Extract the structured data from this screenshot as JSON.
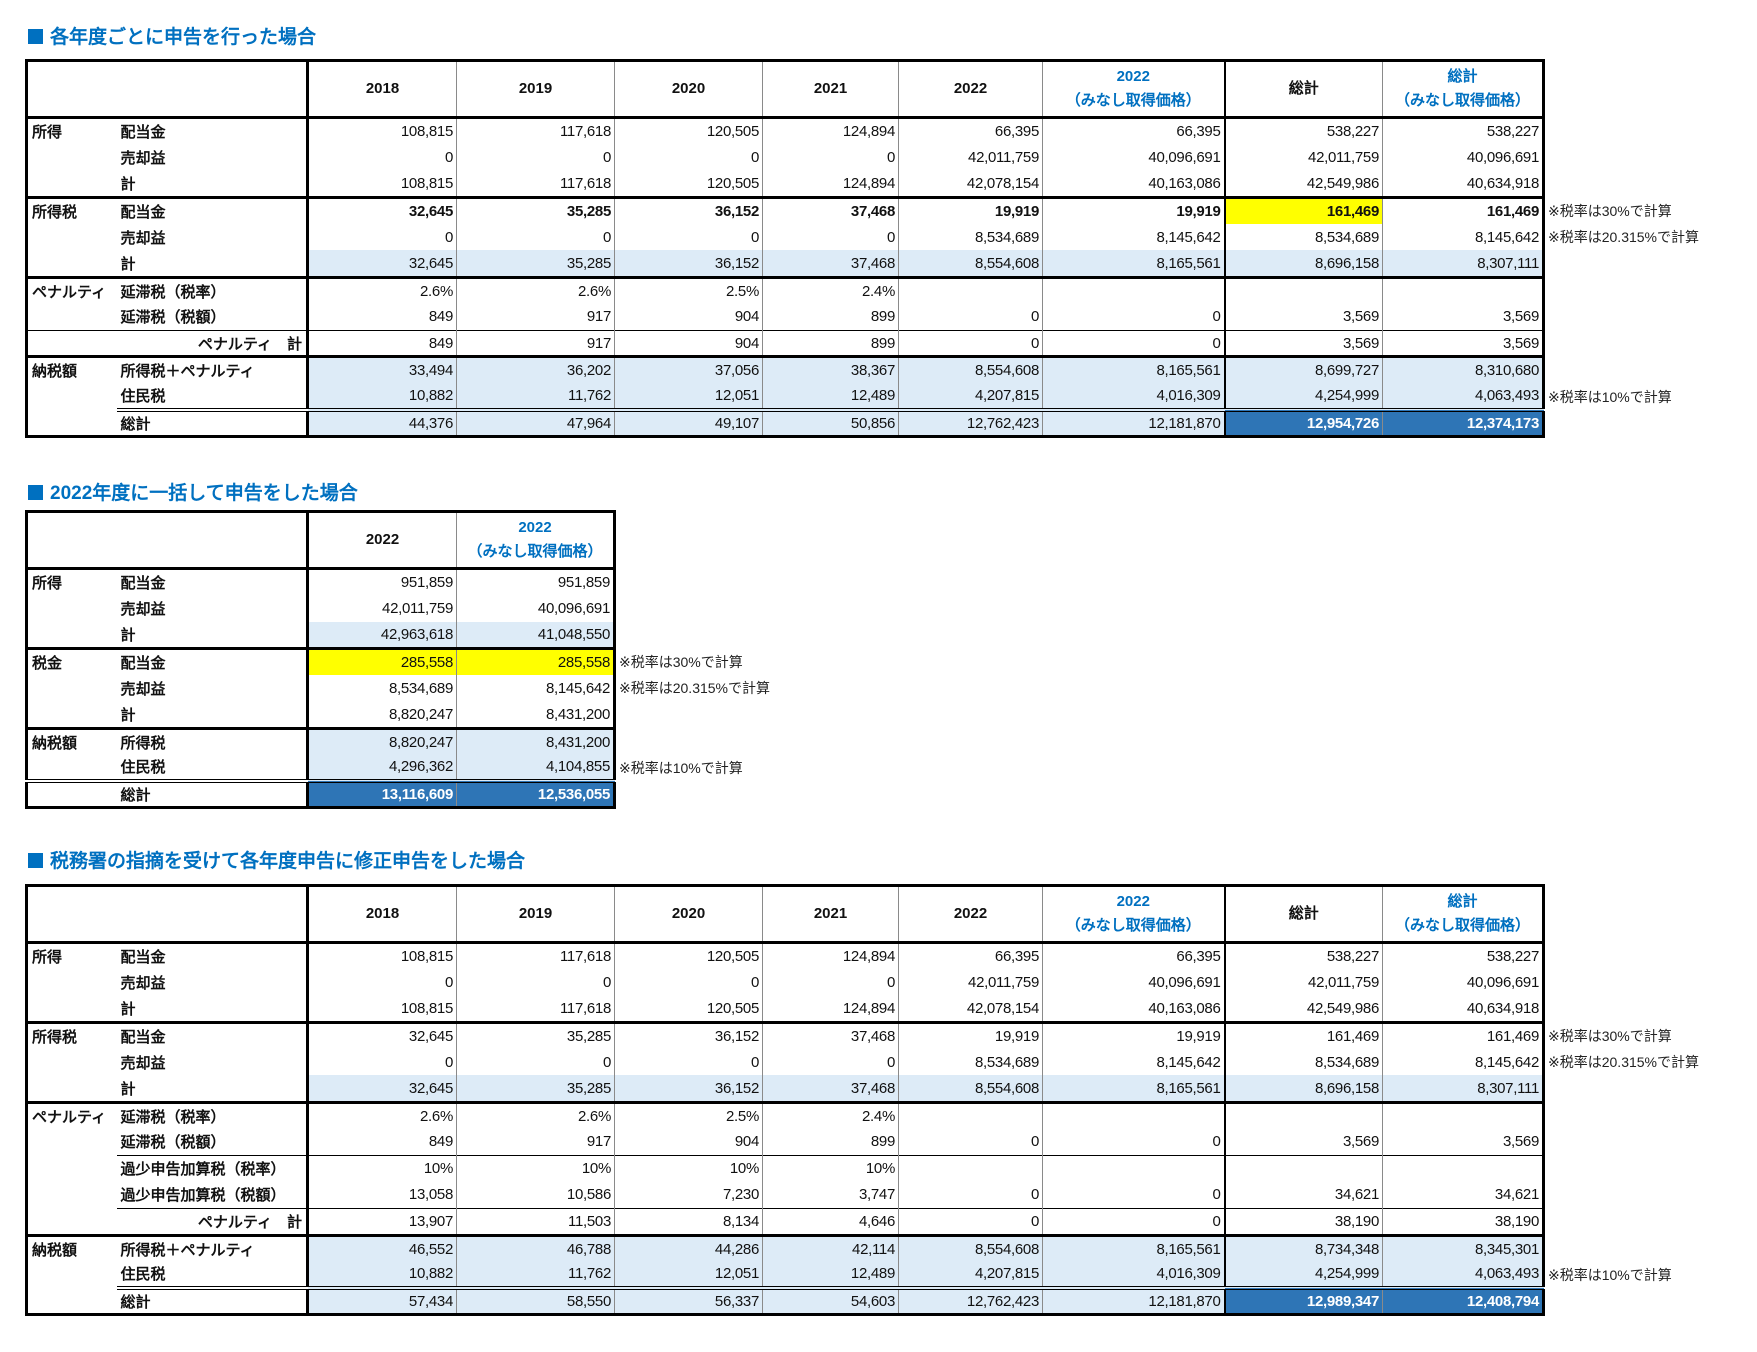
{
  "colors": {
    "light-blue": "#ddebf7",
    "yellow": "#ffff00",
    "dark-blue": "#2e75b6",
    "title": "#0070c0"
  },
  "tables": [
    {
      "title": "各年度ごとに申告を行った場合",
      "columns": [
        {
          "label": "2018"
        },
        {
          "label": "2019"
        },
        {
          "label": "2020"
        },
        {
          "label": "2021"
        },
        {
          "label": "2022"
        },
        {
          "label": "2022",
          "sub": "（みなし取得価格）",
          "blue": true
        },
        {
          "label": "総計"
        },
        {
          "label": "総計",
          "sub": "（みなし取得価格）",
          "blue": true
        }
      ],
      "rows": [
        {
          "group": "所得",
          "item": "配当金",
          "values": [
            "108,815",
            "117,618",
            "120,505",
            "124,894",
            "66,395",
            "66,395",
            "538,227",
            "538,227"
          ]
        },
        {
          "item": "売却益",
          "values": [
            "0",
            "0",
            "0",
            "0",
            "42,011,759",
            "40,096,691",
            "42,011,759",
            "40,096,691"
          ]
        },
        {
          "item": "計",
          "values": [
            "108,815",
            "117,618",
            "120,505",
            "124,894",
            "42,078,154",
            "40,163,086",
            "42,549,986",
            "40,634,918"
          ]
        },
        {
          "group": "所得税",
          "item": "配当金",
          "bold": true,
          "values": [
            "32,645",
            "35,285",
            "36,152",
            "37,468",
            "19,919",
            "19,919",
            "161,469",
            "161,469"
          ],
          "highlights": [
            {
              "col": 6,
              "color": "yellow"
            }
          ],
          "note": "※税率は30%で計算"
        },
        {
          "item": "売却益",
          "values": [
            "0",
            "0",
            "0",
            "0",
            "8,534,689",
            "8,145,642",
            "8,534,689",
            "8,145,642"
          ],
          "note": "※税率は20.315%で計算"
        },
        {
          "item": "計",
          "fill": "light-blue",
          "values": [
            "32,645",
            "35,285",
            "36,152",
            "37,468",
            "8,554,608",
            "8,165,561",
            "8,696,158",
            "8,307,111"
          ]
        },
        {
          "group": "ペナルティ",
          "item": "延滞税（税率）",
          "values": [
            "2.6%",
            "2.6%",
            "2.5%",
            "2.4%",
            "",
            "",
            "",
            ""
          ]
        },
        {
          "item": "延滞税（税額）",
          "values": [
            "849",
            "917",
            "904",
            "899",
            "0",
            "0",
            "3,569",
            "3,569"
          ]
        },
        {
          "item": "ペナルティ　計",
          "type": "subtotal",
          "values": [
            "849",
            "917",
            "904",
            "899",
            "0",
            "0",
            "3,569",
            "3,569"
          ]
        },
        {
          "group": "納税額",
          "item": "所得税＋ペナルティ",
          "fill": "light-blue",
          "values": [
            "33,494",
            "36,202",
            "37,056",
            "38,367",
            "8,554,608",
            "8,165,561",
            "8,699,727",
            "8,310,680"
          ]
        },
        {
          "item": "住民税",
          "fill": "light-blue",
          "values": [
            "10,882",
            "11,762",
            "12,051",
            "12,489",
            "4,207,815",
            "4,016,309",
            "4,254,999",
            "4,063,493"
          ],
          "note": "※税率は10%で計算"
        },
        {
          "item": "総計",
          "type": "total",
          "fill": "light-blue",
          "values": [
            "44,376",
            "47,964",
            "49,107",
            "50,856",
            "12,762,423",
            "12,181,870",
            "12,954,726",
            "12,374,173"
          ],
          "highlights": [
            {
              "col": 6,
              "color": "dark-blue"
            },
            {
              "col": 7,
              "color": "dark-blue"
            }
          ]
        }
      ]
    },
    {
      "title": "2022年度に一括して申告をした場合",
      "columns": [
        {
          "label": "2022"
        },
        {
          "label": "2022",
          "sub": "（みなし取得価格）",
          "blue": true
        }
      ],
      "rows": [
        {
          "group": "所得",
          "item": "配当金",
          "values": [
            "951,859",
            "951,859"
          ]
        },
        {
          "item": "売却益",
          "values": [
            "42,011,759",
            "40,096,691"
          ]
        },
        {
          "item": "計",
          "fill": "light-blue",
          "values": [
            "42,963,618",
            "41,048,550"
          ]
        },
        {
          "group": "税金",
          "item": "配当金",
          "values": [
            "285,558",
            "285,558"
          ],
          "highlights": [
            {
              "col": 0,
              "color": "yellow"
            },
            {
              "col": 1,
              "color": "yellow"
            }
          ],
          "note": "※税率は30%で計算"
        },
        {
          "item": "売却益",
          "values": [
            "8,534,689",
            "8,145,642"
          ],
          "note": "※税率は20.315%で計算"
        },
        {
          "item": "計",
          "values": [
            "8,820,247",
            "8,431,200"
          ]
        },
        {
          "group": "納税額",
          "item": "所得税",
          "fill": "light-blue",
          "values": [
            "8,820,247",
            "8,431,200"
          ]
        },
        {
          "item": "住民税",
          "fill": "light-blue",
          "values": [
            "4,296,362",
            "4,104,855"
          ],
          "note": "※税率は10%で計算"
        },
        {
          "item": "総計",
          "type": "total",
          "values": [
            "13,116,609",
            "12,536,055"
          ],
          "highlights": [
            {
              "col": 0,
              "color": "dark-blue"
            },
            {
              "col": 1,
              "color": "dark-blue"
            }
          ]
        }
      ]
    },
    {
      "title": "税務署の指摘を受けて各年度申告に修正申告をした場合",
      "columns": [
        {
          "label": "2018"
        },
        {
          "label": "2019"
        },
        {
          "label": "2020"
        },
        {
          "label": "2021"
        },
        {
          "label": "2022"
        },
        {
          "label": "2022",
          "sub": "（みなし取得価格）",
          "blue": true
        },
        {
          "label": "総計"
        },
        {
          "label": "総計",
          "sub": "（みなし取得価格）",
          "blue": true
        }
      ],
      "rows": [
        {
          "group": "所得",
          "item": "配当金",
          "values": [
            "108,815",
            "117,618",
            "120,505",
            "124,894",
            "66,395",
            "66,395",
            "538,227",
            "538,227"
          ]
        },
        {
          "item": "売却益",
          "values": [
            "0",
            "0",
            "0",
            "0",
            "42,011,759",
            "40,096,691",
            "42,011,759",
            "40,096,691"
          ]
        },
        {
          "item": "計",
          "values": [
            "108,815",
            "117,618",
            "120,505",
            "124,894",
            "42,078,154",
            "40,163,086",
            "42,549,986",
            "40,634,918"
          ]
        },
        {
          "group": "所得税",
          "item": "配当金",
          "values": [
            "32,645",
            "35,285",
            "36,152",
            "37,468",
            "19,919",
            "19,919",
            "161,469",
            "161,469"
          ],
          "note": "※税率は30%で計算"
        },
        {
          "item": "売却益",
          "values": [
            "0",
            "0",
            "0",
            "0",
            "8,534,689",
            "8,145,642",
            "8,534,689",
            "8,145,642"
          ],
          "note": "※税率は20.315%で計算"
        },
        {
          "item": "計",
          "fill": "light-blue",
          "values": [
            "32,645",
            "35,285",
            "36,152",
            "37,468",
            "8,554,608",
            "8,165,561",
            "8,696,158",
            "8,307,111"
          ]
        },
        {
          "group": "ペナルティ",
          "item": "延滞税（税率）",
          "values": [
            "2.6%",
            "2.6%",
            "2.5%",
            "2.4%",
            "",
            "",
            "",
            ""
          ]
        },
        {
          "item": "延滞税（税額）",
          "values": [
            "849",
            "917",
            "904",
            "899",
            "0",
            "0",
            "3,569",
            "3,569"
          ]
        },
        {
          "item": "過少申告加算税（税率）",
          "type": "divider",
          "values": [
            "10%",
            "10%",
            "10%",
            "10%",
            "",
            "",
            "",
            ""
          ]
        },
        {
          "item": "過少申告加算税（税額）",
          "values": [
            "13,058",
            "10,586",
            "7,230",
            "3,747",
            "0",
            "0",
            "34,621",
            "34,621"
          ]
        },
        {
          "item": "ペナルティ　計",
          "type": "subtotal",
          "values": [
            "13,907",
            "11,503",
            "8,134",
            "4,646",
            "0",
            "0",
            "38,190",
            "38,190"
          ]
        },
        {
          "group": "納税額",
          "item": "所得税＋ペナルティ",
          "fill": "light-blue",
          "values": [
            "46,552",
            "46,788",
            "44,286",
            "42,114",
            "8,554,608",
            "8,165,561",
            "8,734,348",
            "8,345,301"
          ]
        },
        {
          "item": "住民税",
          "fill": "light-blue",
          "values": [
            "10,882",
            "11,762",
            "12,051",
            "12,489",
            "4,207,815",
            "4,016,309",
            "4,254,999",
            "4,063,493"
          ],
          "note": "※税率は10%で計算"
        },
        {
          "item": "総計",
          "type": "total",
          "fill": "light-blue",
          "values": [
            "57,434",
            "58,550",
            "56,337",
            "54,603",
            "12,762,423",
            "12,181,870",
            "12,989,347",
            "12,408,794"
          ],
          "highlights": [
            {
              "col": 6,
              "color": "dark-blue"
            },
            {
              "col": 7,
              "color": "dark-blue"
            }
          ]
        }
      ]
    }
  ]
}
